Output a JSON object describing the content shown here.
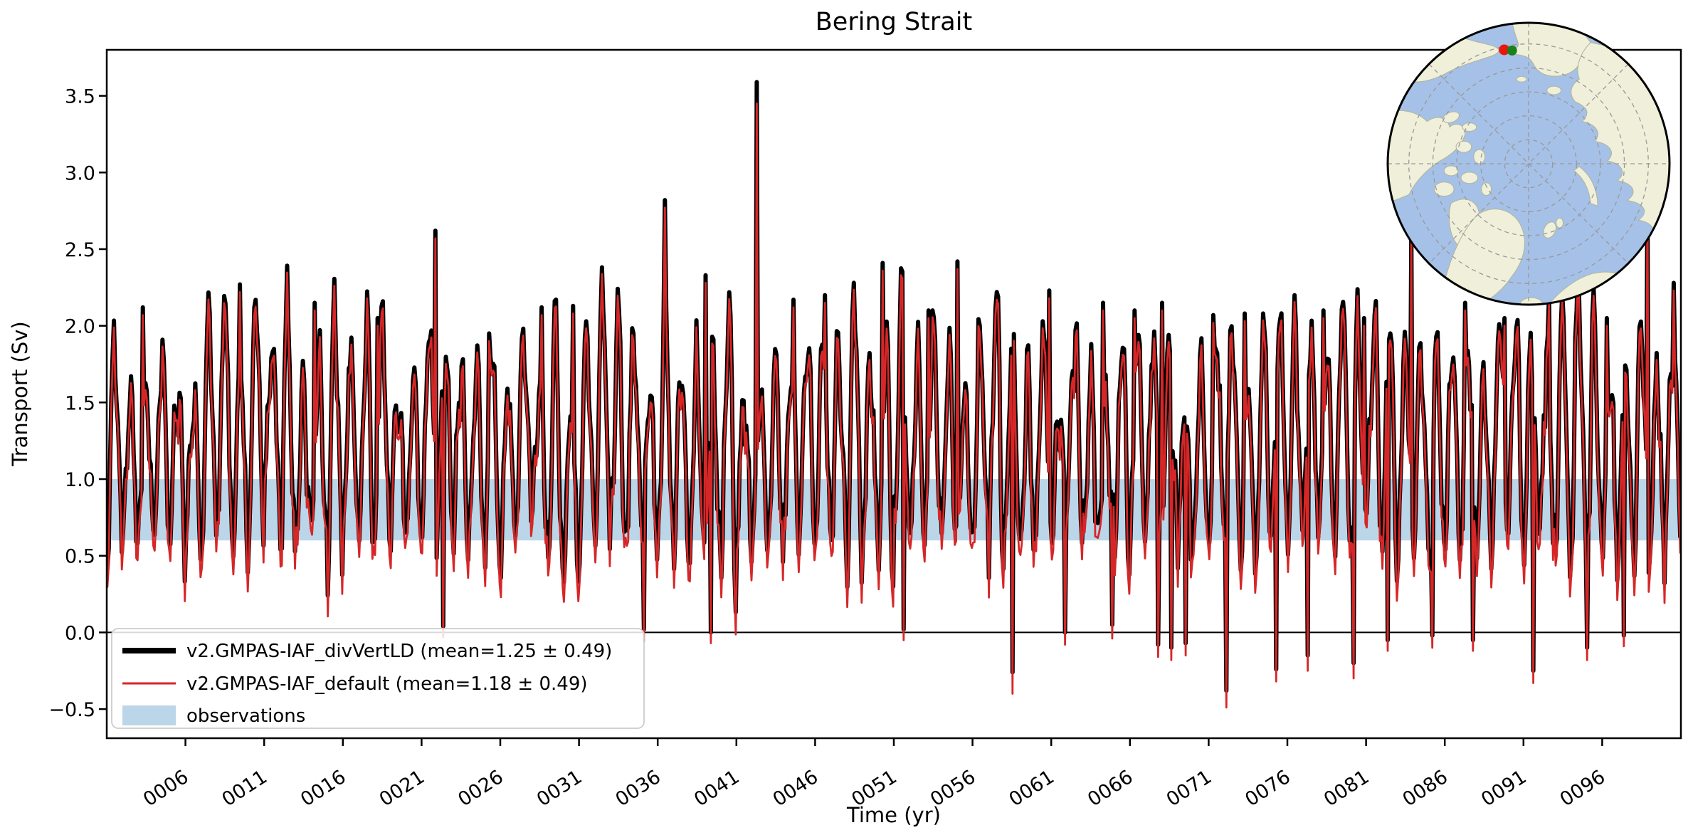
{
  "title": "Bering Strait",
  "axes": {
    "xlabel": "Time (yr)",
    "ylabel": "Transport (Sv)"
  },
  "legend": {
    "entries": [
      {
        "label": "v2.GMPAS-IAF_divVertLD (mean=1.25 ± 0.49)",
        "swatch": "thick-line",
        "color": "#000000"
      },
      {
        "label": "v2.GMPAS-IAF_default (mean=1.18 ± 0.49)",
        "swatch": "thin-line",
        "color": "#d62728"
      },
      {
        "label": "observations",
        "swatch": "patch",
        "color": "#1f77b4",
        "opacity": 0.3
      }
    ]
  },
  "chart_data": {
    "type": "line",
    "title": "Bering Strait",
    "xlabel": "Time (yr)",
    "ylabel": "Transport (Sv)",
    "xlim": [
      1,
      101
    ],
    "ylim": [
      -0.69,
      3.8
    ],
    "x_tick_values": [
      6,
      11,
      16,
      21,
      26,
      31,
      36,
      41,
      46,
      51,
      56,
      61,
      66,
      71,
      76,
      81,
      86,
      91,
      96
    ],
    "x_tick_labels": [
      "0006",
      "0011",
      "0016",
      "0021",
      "0026",
      "0031",
      "0036",
      "0041",
      "0046",
      "0051",
      "0056",
      "0061",
      "0066",
      "0071",
      "0076",
      "0081",
      "0086",
      "0091",
      "0096"
    ],
    "y_tick_values": [
      -0.5,
      0.0,
      0.5,
      1.0,
      1.5,
      2.0,
      2.5,
      3.0,
      3.5
    ],
    "y_tick_labels": [
      "−0.5",
      "0.0",
      "0.5",
      "1.0",
      "1.5",
      "2.0",
      "2.5",
      "3.0",
      "3.5"
    ],
    "zero_line": 0.0,
    "observations_band": {
      "label": "observations",
      "ymin": 0.6,
      "ymax": 1.0,
      "color": "#1f77b4",
      "opacity": 0.3
    },
    "series": [
      {
        "name": "v2.GMPAS-IAF_divVertLD",
        "color": "#000000",
        "linewidth": 6,
        "mean": 1.25,
        "std": 0.49
      },
      {
        "name": "v2.GMPAS-IAF_default",
        "color": "#d62728",
        "linewidth": 2.8,
        "mean": 1.18,
        "std": 0.49
      }
    ],
    "sampling": {
      "start_year": 1,
      "years": 100,
      "points_per_year": 12,
      "cadence": "monthly"
    },
    "generator": {
      "seed": 20,
      "peak_mean": 1.82,
      "peak_sd": 0.3,
      "peak_min": 1.35,
      "peak_max": 2.35,
      "trough_mean": 0.54,
      "trough_sd": 0.18,
      "trough_min": 0.08,
      "trough_max": 0.95,
      "noise_sd": 0.12,
      "wiggle_min": 0.1,
      "wiggle_max": 0.3,
      "black_offset": 0.06,
      "red_gap_base": 0.045,
      "red_gap_extra": 0.11,
      "clamp_lo": -0.52,
      "clamp_hi": 3.7
    },
    "extreme_points": {
      "peaks": [
        [
          3.3,
          2.12,
          2.07
        ],
        [
          9.45,
          2.27,
          2.22
        ],
        [
          14.2,
          2.15,
          2.1
        ],
        [
          18.2,
          2.05,
          2.0
        ],
        [
          21.9,
          2.62,
          2.57
        ],
        [
          25.3,
          1.95,
          1.9
        ],
        [
          28.6,
          2.12,
          2.07
        ],
        [
          30.6,
          2.13,
          2.08
        ],
        [
          33.5,
          2.1,
          2.05
        ],
        [
          36.45,
          2.82,
          2.77
        ],
        [
          39.0,
          2.33,
          2.28
        ],
        [
          42.29,
          3.59,
          3.45
        ],
        [
          44.6,
          2.17,
          2.12
        ],
        [
          46.6,
          2.2,
          2.15
        ],
        [
          50.3,
          2.41,
          2.36
        ],
        [
          53.2,
          2.1,
          2.05
        ],
        [
          55.0,
          2.42,
          2.37
        ],
        [
          57.5,
          2.22,
          2.17
        ],
        [
          60.9,
          2.23,
          2.18
        ],
        [
          64.3,
          2.15,
          2.1
        ],
        [
          66.3,
          2.1,
          2.05
        ],
        [
          68.0,
          2.15,
          2.1
        ],
        [
          71.3,
          2.07,
          2.02
        ],
        [
          73.3,
          2.08,
          2.03
        ],
        [
          78.3,
          2.1,
          2.05
        ],
        [
          80.9,
          2.05,
          2.0
        ],
        [
          83.9,
          2.6,
          2.55
        ],
        [
          87.3,
          2.15,
          2.1
        ],
        [
          89.8,
          2.05,
          2.0
        ],
        [
          92.6,
          2.2,
          2.15
        ],
        [
          94.4,
          2.1,
          2.05
        ],
        [
          96.3,
          2.05,
          2.0
        ],
        [
          98.9,
          2.9,
          2.85
        ],
        [
          100.55,
          2.28,
          2.23
        ]
      ],
      "dips": [
        [
          22.4,
          0.04,
          -0.03
        ],
        [
          35.1,
          0.02,
          -0.06
        ],
        [
          39.4,
          0.0,
          -0.07
        ],
        [
          51.6,
          0.02,
          -0.05
        ],
        [
          58.5,
          -0.26,
          -0.4
        ],
        [
          61.9,
          0.0,
          -0.08
        ],
        [
          64.9,
          0.05,
          -0.04
        ],
        [
          67.8,
          -0.08,
          -0.16
        ],
        [
          68.6,
          -0.1,
          -0.18
        ],
        [
          69.5,
          -0.07,
          -0.15
        ],
        [
          72.1,
          -0.38,
          -0.49
        ],
        [
          75.3,
          -0.24,
          -0.32
        ],
        [
          77.3,
          -0.15,
          -0.25
        ],
        [
          80.2,
          -0.2,
          -0.3
        ],
        [
          82.4,
          -0.05,
          -0.12
        ],
        [
          85.2,
          -0.02,
          -0.1
        ],
        [
          87.8,
          -0.05,
          -0.12
        ],
        [
          91.6,
          -0.25,
          -0.33
        ],
        [
          95.0,
          -0.1,
          -0.18
        ],
        [
          97.4,
          -0.02,
          -0.09
        ]
      ]
    }
  },
  "inset_map": {
    "projection": "north-polar",
    "ocean_color": "#a6c1e7",
    "land_color": "#f0efda",
    "coast_color": "#b0b497",
    "graticule_color": "#999999",
    "border_color": "#000000",
    "markers": [
      {
        "name": "transect-point-red",
        "color": "#e8160c"
      },
      {
        "name": "transect-point-green",
        "color": "#1a801a"
      }
    ]
  }
}
